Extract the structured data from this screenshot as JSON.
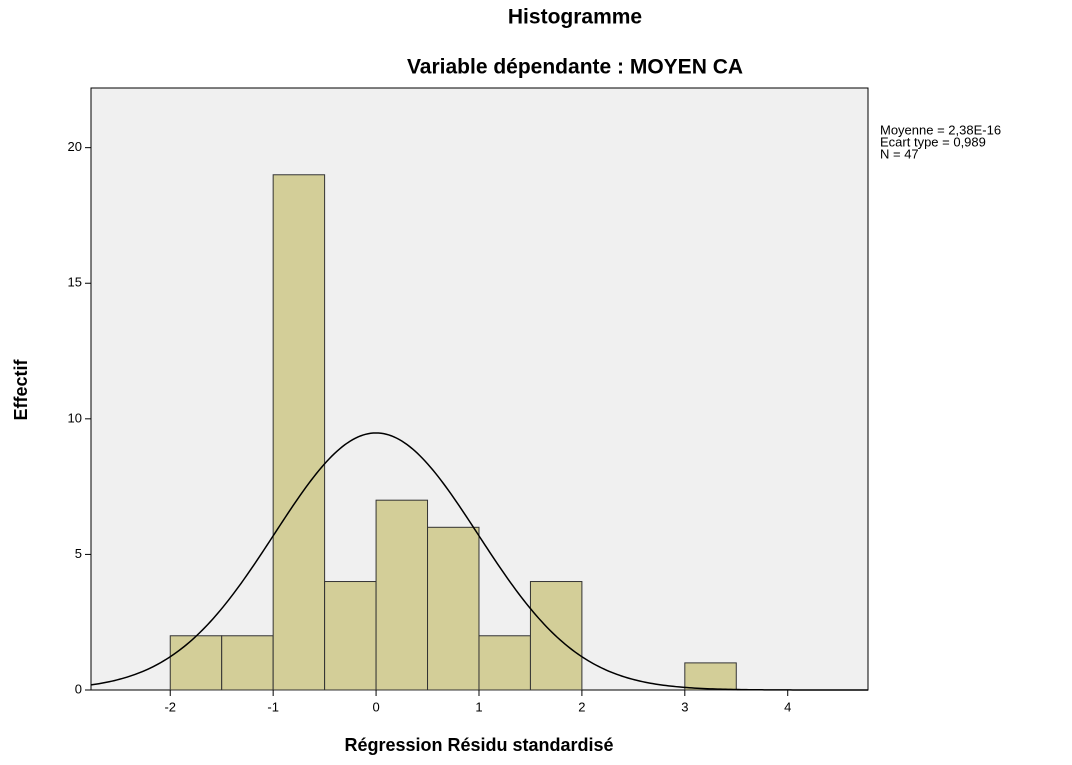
{
  "chart_data": {
    "type": "histogram",
    "title": "Histogramme",
    "subtitle": "Variable dépendante : MOYEN CA",
    "x_label": "Régression Résidu standardisé",
    "y_label": "Effectif",
    "bins": [
      -2,
      -1.5,
      -1,
      -0.5,
      0,
      0.5,
      1,
      1.5,
      2,
      2.5,
      3,
      3.5
    ],
    "values": [
      2,
      2,
      19,
      4,
      7,
      6,
      2,
      4,
      0,
      0,
      1
    ],
    "color": "#d3ce98",
    "background": "#f0f0f0",
    "xlim": [
      -2.77,
      4.78
    ],
    "xticks": [
      -2,
      -1,
      0,
      1,
      2,
      3,
      4
    ],
    "ylim": [
      0,
      22.2
    ],
    "yticks": [
      0,
      5,
      10,
      15,
      20
    ],
    "grid": false,
    "stats": [
      {
        "value": 2.38e-16,
        "label": "Moyenne = 2,38E-16"
      },
      {
        "value": 0.989,
        "label": "Ecart type = 0,989"
      },
      {
        "value": 47,
        "label": "N = 47"
      }
    ]
  }
}
